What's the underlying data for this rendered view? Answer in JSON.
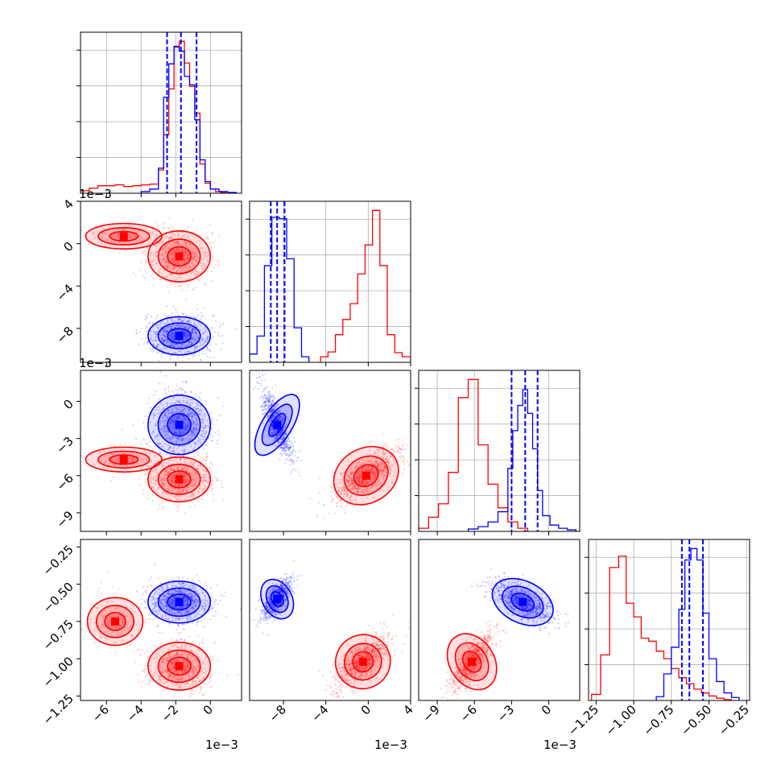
{
  "figure": {
    "type": "corner-plot",
    "colors": {
      "red": "#ff0000",
      "blue": "#0000ff",
      "grid": "#b0b0b0"
    },
    "quantile_line_color": "#0000ff",
    "quantile_line_style": "dashed",
    "offset_label": "1e−3",
    "grid": true
  },
  "chart_data": [
    {
      "type": "histogram",
      "row": 0,
      "col": 0,
      "xlim": [
        -0.0075,
        0.0018
      ],
      "x_ticks": [
        -0.006,
        -0.004,
        -0.002,
        0.0
      ],
      "quantiles": [
        -0.0025,
        -0.0017,
        -0.0008
      ],
      "series": [
        {
          "name": "",
          "color": "#ff0000",
          "edges": [
            -0.0075,
            -0.007,
            -0.0065,
            -0.006,
            -0.0055,
            -0.005,
            -0.0045,
            -0.004,
            -0.0035,
            -0.003,
            -0.0027,
            -0.0024,
            -0.0021,
            -0.0018,
            -0.0015,
            -0.0012,
            -0.0009,
            -0.0006,
            -0.0003,
            0.0,
            0.0003,
            0.0006,
            0.0009
          ],
          "counts": [
            3,
            6,
            9,
            9,
            10,
            8,
            9,
            10,
            11,
            28,
            70,
            125,
            175,
            182,
            156,
            128,
            96,
            35,
            12,
            5,
            2,
            1
          ]
        },
        {
          "name": "",
          "color": "#0000ff",
          "edges": [
            -0.004,
            -0.0035,
            -0.003,
            -0.0027,
            -0.0024,
            -0.0021,
            -0.0018,
            -0.0015,
            -0.0012,
            -0.0009,
            -0.0006,
            -0.0003,
            0.0,
            0.0005,
            0.001,
            0.0015
          ],
          "counts": [
            2,
            5,
            30,
            115,
            155,
            176,
            170,
            140,
            130,
            88,
            40,
            14,
            5,
            2,
            1
          ]
        }
      ]
    },
    {
      "type": "histogram",
      "row": 1,
      "col": 1,
      "xlim": [
        -0.0112,
        0.004
      ],
      "x_ticks": [
        -0.008,
        -0.004,
        0.0,
        0.004
      ],
      "x_tick_labels": [
        "−8",
        "−4",
        "0",
        "4"
      ],
      "quantiles": [
        -0.0092,
        -0.0086,
        -0.0079
      ],
      "series": [
        {
          "name": "",
          "color": "#0000ff",
          "edges": [
            -0.0112,
            -0.0105,
            -0.0098,
            -0.0091,
            -0.0084,
            -0.0077,
            -0.007,
            -0.0063,
            -0.0056
          ],
          "counts": [
            12,
            38,
            140,
            210,
            208,
            150,
            50,
            8
          ]
        },
        {
          "name": "",
          "color": "#ff0000",
          "edges": [
            -0.0045,
            -0.0038,
            -0.0031,
            -0.0024,
            -0.0017,
            -0.001,
            -0.0003,
            0.0004,
            0.0011,
            0.0018,
            0.0025,
            0.0032,
            0.004
          ],
          "counts": [
            8,
            15,
            40,
            62,
            85,
            128,
            170,
            220,
            140,
            40,
            14,
            8
          ]
        }
      ]
    },
    {
      "type": "histogram",
      "row": 2,
      "col": 2,
      "xlim": [
        -0.0105,
        0.0025
      ],
      "x_ticks": [
        -0.009,
        -0.006,
        -0.003,
        0.0
      ],
      "x_tick_labels": [
        "−9",
        "−6",
        "−3",
        "0"
      ],
      "quantiles": [
        -0.003,
        -0.0019,
        -0.0009
      ],
      "series": [
        {
          "name": "",
          "color": "#ff0000",
          "edges": [
            -0.0105,
            -0.0097,
            -0.0089,
            -0.0081,
            -0.0073,
            -0.0065,
            -0.0057,
            -0.0049,
            -0.0041,
            -0.0033,
            -0.0025,
            -0.0017
          ],
          "counts": [
            4,
            18,
            35,
            75,
            170,
            193,
            110,
            60,
            30,
            12,
            4
          ]
        },
        {
          "name": "",
          "color": "#0000ff",
          "edges": [
            -0.0065,
            -0.0057,
            -0.0049,
            -0.0041,
            -0.0033,
            -0.0029,
            -0.0025,
            -0.0021,
            -0.0017,
            -0.0013,
            -0.0009,
            -0.0005,
            0.0001,
            0.0008,
            0.0015,
            0.0022
          ],
          "counts": [
            3,
            6,
            12,
            25,
            80,
            128,
            160,
            180,
            150,
            105,
            52,
            20,
            8,
            4,
            2
          ]
        }
      ]
    },
    {
      "type": "histogram",
      "row": 3,
      "col": 3,
      "xlim": [
        -1.3,
        -0.23
      ],
      "x_ticks": [
        -1.25,
        -1.0,
        -0.75,
        -0.5,
        -0.25
      ],
      "x_tick_labels": [
        "−1.25",
        "−1.00",
        "−0.75",
        "−0.50",
        "−0.25"
      ],
      "quantiles": [
        -0.68,
        -0.63,
        -0.54
      ],
      "series": [
        {
          "name": "",
          "color": "#ff0000",
          "edges": [
            -1.28,
            -1.22,
            -1.16,
            -1.1,
            -1.05,
            -1.0,
            -0.95,
            -0.9,
            -0.85,
            -0.8,
            -0.75,
            -0.7,
            -0.65,
            -0.6,
            -0.55,
            -0.5,
            -0.45,
            -0.4,
            -0.35
          ],
          "counts": [
            8,
            60,
            175,
            190,
            128,
            110,
            82,
            78,
            65,
            55,
            42,
            30,
            22,
            15,
            10,
            6,
            3,
            1
          ]
        },
        {
          "name": "",
          "color": "#0000ff",
          "edges": [
            -0.85,
            -0.8,
            -0.75,
            -0.7,
            -0.66,
            -0.62,
            -0.58,
            -0.54,
            -0.5,
            -0.45,
            -0.4,
            -0.35,
            -0.3
          ],
          "counts": [
            5,
            35,
            70,
            120,
            185,
            200,
            185,
            115,
            55,
            25,
            10,
            4
          ]
        }
      ]
    },
    {
      "type": "scatter-contour",
      "row": 1,
      "col": 0,
      "xlim": [
        -0.0075,
        0.0018
      ],
      "ylim": [
        -0.0112,
        0.004
      ],
      "y_ticks": [
        0.004,
        0.0,
        -0.004,
        -0.008
      ],
      "y_tick_labels": [
        "4",
        "0",
        "−4",
        "−8"
      ],
      "series": [
        {
          "color": "#ff0000",
          "clusters": [
            {
              "center": [
                -0.0018,
                -0.0012
              ],
              "sd": [
                0.0009,
                0.0012
              ],
              "weight": 0.82
            },
            {
              "center": [
                -0.005,
                0.0007
              ],
              "sd": [
                0.0011,
                0.0006
              ],
              "weight": 0.18
            }
          ]
        },
        {
          "color": "#0000ff",
          "clusters": [
            {
              "center": [
                -0.0018,
                -0.0087
              ],
              "sd": [
                0.0009,
                0.0009
              ],
              "weight": 1.0
            }
          ]
        }
      ]
    },
    {
      "type": "scatter-contour",
      "row": 2,
      "col": 0,
      "xlim": [
        -0.0075,
        0.0018
      ],
      "ylim": [
        -0.0105,
        0.0025
      ],
      "y_ticks": [
        0.0,
        -0.003,
        -0.006,
        -0.009
      ],
      "y_tick_labels": [
        "0",
        "−3",
        "−6",
        "−9"
      ],
      "series": [
        {
          "color": "#ff0000",
          "clusters": [
            {
              "center": [
                -0.0018,
                -0.0063
              ],
              "sd": [
                0.0009,
                0.0009
              ],
              "weight": 0.82
            },
            {
              "center": [
                -0.005,
                -0.0047
              ],
              "sd": [
                0.0011,
                0.0005
              ],
              "weight": 0.18
            }
          ]
        },
        {
          "color": "#0000ff",
          "clusters": [
            {
              "center": [
                -0.0018,
                -0.0019
              ],
              "sd": [
                0.0009,
                0.0012
              ],
              "weight": 1.0
            }
          ]
        }
      ]
    },
    {
      "type": "scatter-contour",
      "row": 2,
      "col": 1,
      "xlim": [
        -0.0112,
        0.004
      ],
      "ylim": [
        -0.0105,
        0.0025
      ],
      "series": [
        {
          "color": "#0000ff",
          "clusters": [
            {
              "center": [
                -0.0086,
                -0.0019
              ],
              "sd": [
                0.0007,
                0.0014
              ],
              "weight": 1.0,
              "rho": -0.8
            }
          ]
        },
        {
          "color": "#ff0000",
          "clusters": [
            {
              "center": [
                -0.0002,
                -0.006
              ],
              "sd": [
                0.0016,
                0.0011
              ],
              "weight": 1.0,
              "rho": 0.75
            }
          ]
        }
      ]
    },
    {
      "type": "scatter-contour",
      "row": 3,
      "col": 0,
      "xlim": [
        -0.0075,
        0.0018
      ],
      "ylim": [
        -1.28,
        -0.2
      ],
      "y_ticks": [
        -0.25,
        -0.5,
        -0.75,
        -1.0,
        -1.25
      ],
      "y_tick_labels": [
        "−0.25",
        "−0.50",
        "−0.75",
        "−1.00",
        "−1.25"
      ],
      "series": [
        {
          "color": "#ff0000",
          "clusters": [
            {
              "center": [
                -0.0018,
                -1.05
              ],
              "sd": [
                0.0009,
                0.08
              ],
              "weight": 0.8
            },
            {
              "center": [
                -0.0055,
                -0.75
              ],
              "sd": [
                0.0008,
                0.08
              ],
              "weight": 0.2
            }
          ]
        },
        {
          "color": "#0000ff",
          "clusters": [
            {
              "center": [
                -0.0018,
                -0.62
              ],
              "sd": [
                0.0009,
                0.07
              ],
              "weight": 1.0
            }
          ]
        }
      ]
    },
    {
      "type": "scatter-contour",
      "row": 3,
      "col": 1,
      "xlim": [
        -0.0112,
        0.004
      ],
      "ylim": [
        -1.28,
        -0.2
      ],
      "series": [
        {
          "color": "#0000ff",
          "clusters": [
            {
              "center": [
                -0.0086,
                -0.6
              ],
              "sd": [
                0.0007,
                0.07
              ],
              "weight": 1.0,
              "rho": 0.7
            }
          ]
        },
        {
          "color": "#ff0000",
          "clusters": [
            {
              "center": [
                -0.0005,
                -1.02
              ],
              "sd": [
                0.0013,
                0.09
              ],
              "weight": 1.0,
              "rho": 0.7
            }
          ]
        }
      ]
    },
    {
      "type": "scatter-contour",
      "row": 3,
      "col": 2,
      "xlim": [
        -0.0105,
        0.0025
      ],
      "ylim": [
        -1.28,
        -0.2
      ],
      "series": [
        {
          "color": "#0000ff",
          "clusters": [
            {
              "center": [
                -0.0021,
                -0.62
              ],
              "sd": [
                0.0013,
                0.07
              ],
              "weight": 1.0,
              "rho": -0.65
            }
          ]
        },
        {
          "color": "#ff0000",
          "clusters": [
            {
              "center": [
                -0.0062,
                -1.02
              ],
              "sd": [
                0.0009,
                0.1
              ],
              "weight": 1.0,
              "rho": 0.8
            }
          ]
        }
      ]
    }
  ]
}
